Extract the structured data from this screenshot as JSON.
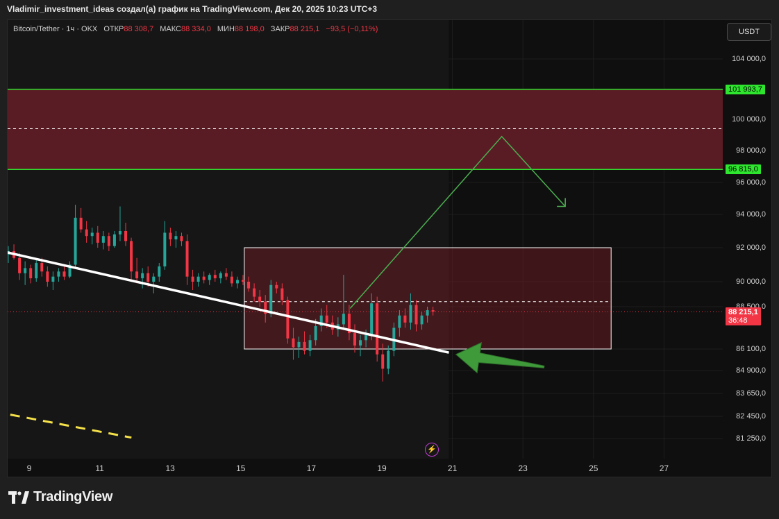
{
  "header": {
    "text": "Vladimir_investment_ideas создал(а) график на TradingView.com, Дек 20, 2025 10:23 UTC+3"
  },
  "legend": {
    "pair": "Bitcoin/Tether · 1ч · OKX",
    "open_label": "ОТКР",
    "open_value": "88 308,7",
    "high_label": "МАКС",
    "high_value": "88 334,0",
    "low_label": "МИН",
    "low_value": "88 198,0",
    "close_label": "ЗАКР",
    "close_value": "88 215,1",
    "change": "−93,5 (−0,11%)"
  },
  "currency_button": "USDT",
  "footer": {
    "brand": "TradingView"
  },
  "colors": {
    "up": "#26a69a",
    "down": "#f23645",
    "zone_fill": "#5a1c24",
    "zone_border": "#2ee62e",
    "trend_line": "#ffffff",
    "yellow_line": "#f5e14a",
    "arrow_green": "#3f9b3a"
  },
  "chart_data": {
    "type": "candlestick",
    "price_ticks": [
      "104 000,0",
      "100 000,0",
      "98 000,0",
      "96 000,0",
      "94 000,0",
      "92 000,0",
      "90 000,0",
      "88 500,0",
      "86 100,0",
      "84 900,0",
      "83 650,0",
      "82 450,0",
      "81 250,0"
    ],
    "x_ticks": [
      "9",
      "11",
      "13",
      "15",
      "17",
      "19",
      "21",
      "23",
      "25",
      "27"
    ],
    "price_tags": [
      {
        "label": "101 993,7",
        "price": 101993.7,
        "style": "green"
      },
      {
        "label": "96 815,0",
        "price": 96815.0,
        "style": "green"
      }
    ],
    "last_price": {
      "label": "88 215,1",
      "countdown": "36:48",
      "price": 88215.1
    },
    "resistance_zone": {
      "top": 101993.7,
      "bottom": 96815.0,
      "mid": 99400
    },
    "range_box": {
      "x_start": 15.1,
      "x_end": 25.5,
      "top": 92000,
      "bottom": 86100,
      "mid": 88800
    },
    "trend_line": {
      "x1": 8.0,
      "y1": 91900,
      "x2": 20.9,
      "y2": 85900
    },
    "dashed_yellow_line": {
      "x1": 8.0,
      "y1": 82700,
      "x2": 11.9,
      "y2": 81300
    },
    "projection_path": [
      {
        "x": 18.1,
        "y": 88400
      },
      {
        "x": 22.4,
        "y": 98900
      },
      {
        "x": 24.2,
        "y": 94500
      }
    ],
    "big_arrow": {
      "from_x": 23.6,
      "from_y": 85100,
      "to_x": 21.1,
      "to_y": 85800
    },
    "candles": [
      [
        91600,
        92100,
        91100,
        91800
      ],
      [
        91800,
        92200,
        91300,
        91400
      ],
      [
        91400,
        91700,
        90100,
        90500
      ],
      [
        90500,
        91200,
        89800,
        90800
      ],
      [
        90800,
        91000,
        89900,
        90200
      ],
      [
        90200,
        91300,
        90000,
        91100
      ],
      [
        91100,
        91400,
        90300,
        90600
      ],
      [
        90600,
        90900,
        89700,
        90000
      ],
      [
        90000,
        90600,
        89500,
        90300
      ],
      [
        90300,
        90800,
        90000,
        90600
      ],
      [
        90600,
        90900,
        90100,
        90300
      ],
      [
        90300,
        91200,
        90200,
        91000
      ],
      [
        91000,
        94600,
        90800,
        93800
      ],
      [
        93800,
        94400,
        92900,
        93100
      ],
      [
        93100,
        93600,
        92300,
        92700
      ],
      [
        92700,
        93200,
        92200,
        92900
      ],
      [
        92900,
        93300,
        92000,
        92300
      ],
      [
        92300,
        93000,
        91900,
        92700
      ],
      [
        92700,
        92900,
        91800,
        92100
      ],
      [
        92100,
        93000,
        92000,
        92800
      ],
      [
        92800,
        94500,
        92400,
        93000
      ],
      [
        93000,
        93500,
        92100,
        92400
      ],
      [
        92400,
        92600,
        90100,
        90600
      ],
      [
        90600,
        91400,
        89900,
        90200
      ],
      [
        90200,
        90800,
        89600,
        90500
      ],
      [
        90500,
        90900,
        89700,
        90000
      ],
      [
        90000,
        90500,
        89300,
        90300
      ],
      [
        90300,
        91100,
        90000,
        90900
      ],
      [
        90900,
        93600,
        90700,
        92900
      ],
      [
        92900,
        93200,
        92100,
        92500
      ],
      [
        92500,
        93000,
        92000,
        92700
      ],
      [
        92700,
        92900,
        92100,
        92400
      ],
      [
        92400,
        92800,
        89800,
        90300
      ],
      [
        90300,
        90700,
        89500,
        90000
      ],
      [
        90000,
        90500,
        89700,
        90300
      ],
      [
        90300,
        90600,
        89900,
        90100
      ],
      [
        90100,
        90500,
        89800,
        90400
      ],
      [
        90400,
        90700,
        90000,
        90200
      ],
      [
        90200,
        90600,
        89900,
        90500
      ],
      [
        90500,
        90800,
        90100,
        90300
      ],
      [
        90300,
        90600,
        89700,
        89900
      ],
      [
        89900,
        90300,
        89600,
        90100
      ],
      [
        90100,
        90400,
        89800,
        90000
      ],
      [
        90000,
        90300,
        89400,
        89600
      ],
      [
        89600,
        89900,
        88800,
        89100
      ],
      [
        89100,
        89500,
        88500,
        88800
      ],
      [
        88800,
        89200,
        87600,
        88100
      ],
      [
        88100,
        90100,
        87900,
        89800
      ],
      [
        89800,
        90000,
        89300,
        89600
      ],
      [
        89600,
        89900,
        88600,
        88900
      ],
      [
        88900,
        89100,
        86400,
        86700
      ],
      [
        86700,
        87300,
        85500,
        86200
      ],
      [
        86200,
        86800,
        85600,
        86500
      ],
      [
        86500,
        87100,
        85800,
        86000
      ],
      [
        86000,
        86900,
        85700,
        86600
      ],
      [
        86600,
        87800,
        86300,
        87400
      ],
      [
        87400,
        88400,
        87100,
        88000
      ],
      [
        88000,
        88600,
        87300,
        87600
      ],
      [
        87600,
        88000,
        86900,
        87200
      ],
      [
        87200,
        87900,
        86800,
        87500
      ],
      [
        87500,
        90400,
        87200,
        88100
      ],
      [
        88100,
        88600,
        86600,
        87000
      ],
      [
        87000,
        87500,
        85900,
        86300
      ],
      [
        86300,
        86900,
        85700,
        86600
      ],
      [
        86600,
        87200,
        86200,
        86900
      ],
      [
        86900,
        89300,
        86600,
        88700
      ],
      [
        88700,
        89100,
        85400,
        85800
      ],
      [
        85800,
        86400,
        84300,
        85000
      ],
      [
        85000,
        86300,
        84700,
        86000
      ],
      [
        86000,
        87600,
        85700,
        87300
      ],
      [
        87300,
        88300,
        86800,
        88000
      ],
      [
        88000,
        88400,
        87300,
        87600
      ],
      [
        87600,
        89300,
        87200,
        88600
      ],
      [
        88600,
        88900,
        87100,
        87500
      ],
      [
        87500,
        88200,
        87200,
        88000
      ],
      [
        88000,
        88500,
        87600,
        88300
      ],
      [
        88300,
        88500,
        88000,
        88215
      ]
    ]
  }
}
